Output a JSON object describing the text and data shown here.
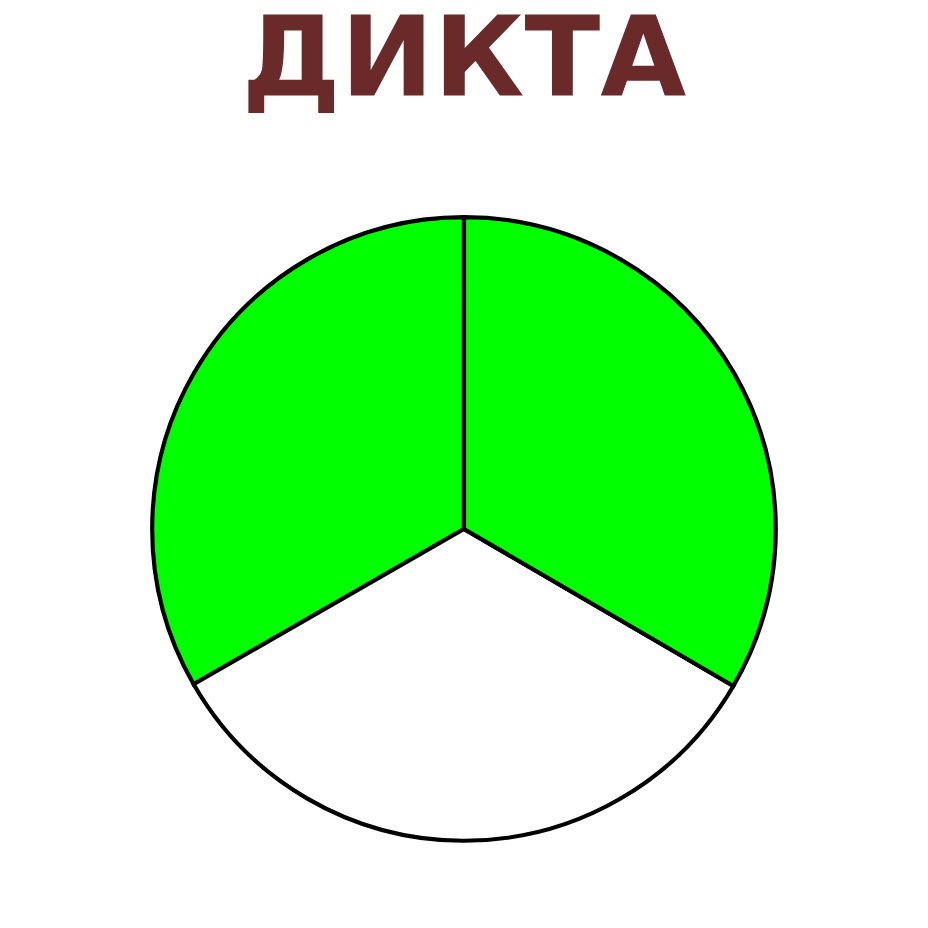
{
  "chart_data": {
    "type": "pie",
    "title": "ДИКТА",
    "categories": [
      null,
      null,
      null
    ],
    "values": [
      33.3,
      33.3,
      33.4
    ],
    "colors": [
      "#00ff00",
      "#ffffff",
      "#00ff00"
    ]
  }
}
